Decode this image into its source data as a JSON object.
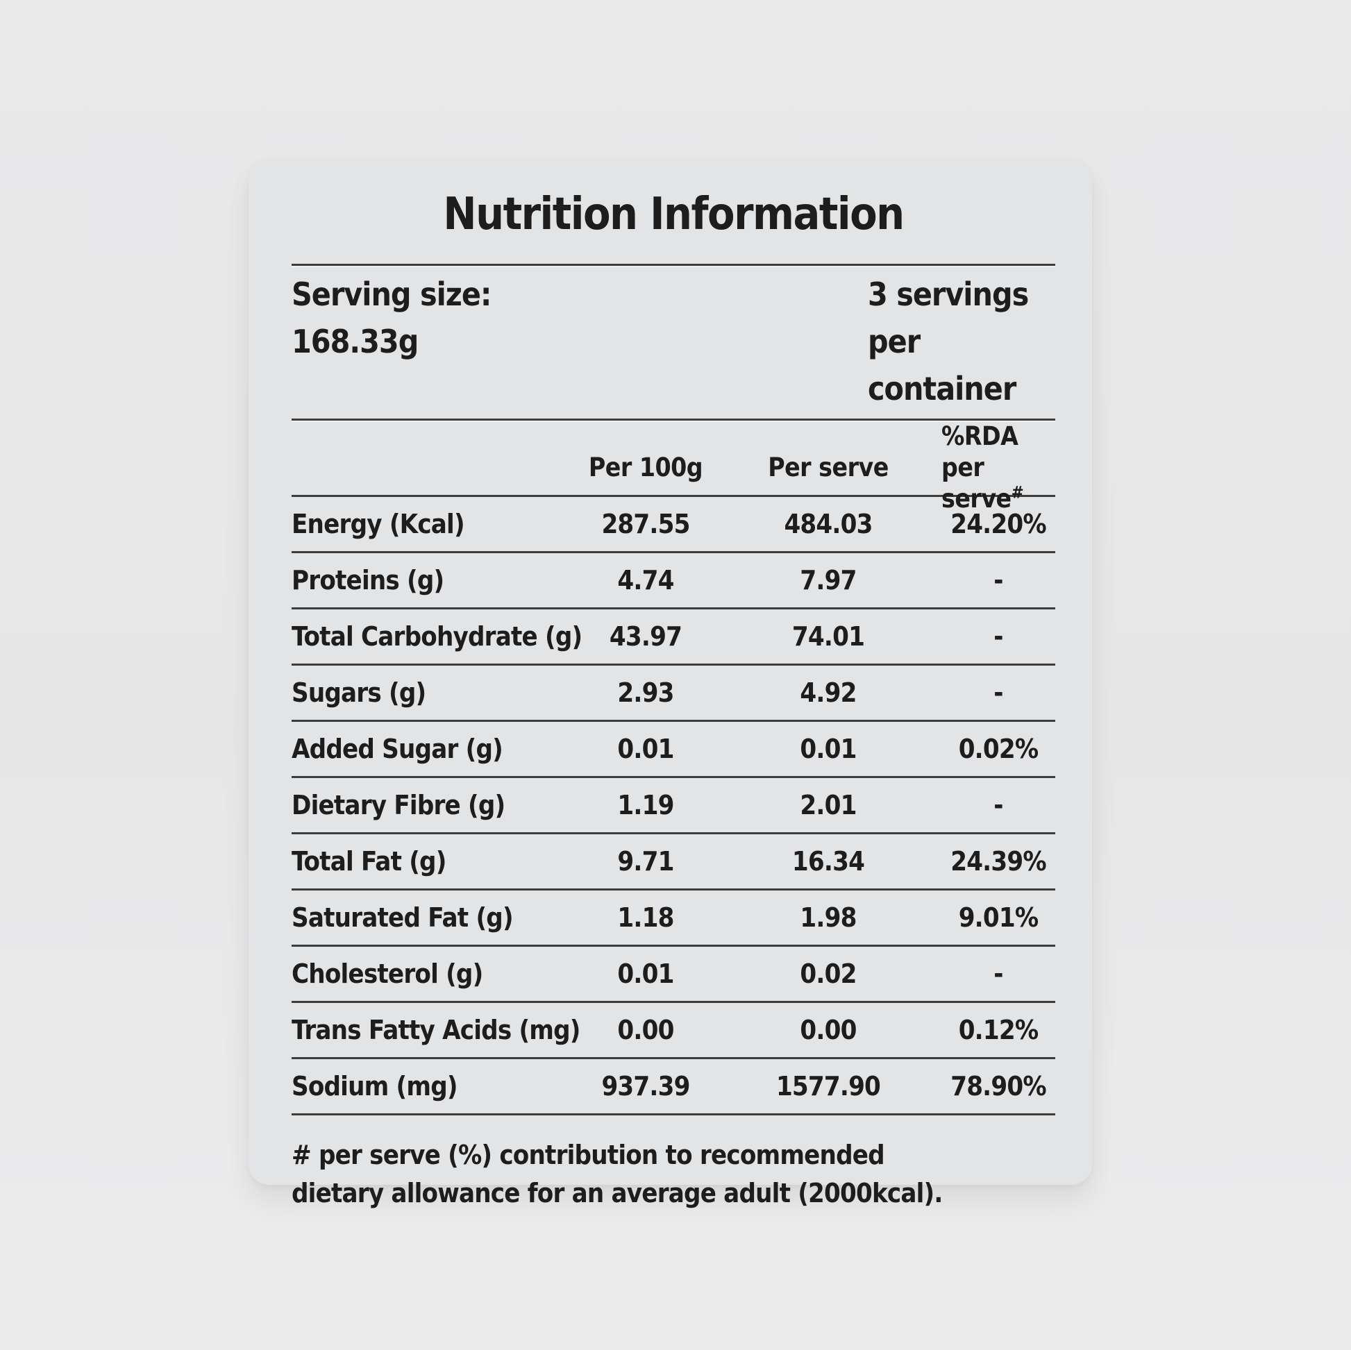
{
  "title": "Nutrition Information",
  "serving": {
    "size_label": "Serving size:",
    "size_value": "168.33g",
    "servings_count": "3 servings",
    "servings_unit": "per container"
  },
  "table": {
    "columns": {
      "per_100g": "Per 100g",
      "per_serve": "Per serve",
      "rda_line1": "%RDA",
      "rda_line2": "per serve",
      "rda_superscript": "#"
    },
    "rows": [
      {
        "label": "Energy (Kcal)",
        "per_100g": "287.55",
        "per_serve": "484.03",
        "rda_per_serve": "24.20%"
      },
      {
        "label": "Proteins (g)",
        "per_100g": "4.74",
        "per_serve": "7.97",
        "rda_per_serve": "-"
      },
      {
        "label": "Total Carbohydrate (g)",
        "per_100g": "43.97",
        "per_serve": "74.01",
        "rda_per_serve": "-"
      },
      {
        "label": "Sugars (g)",
        "per_100g": "2.93",
        "per_serve": "4.92",
        "rda_per_serve": "-"
      },
      {
        "label": "Added Sugar (g)",
        "per_100g": "0.01",
        "per_serve": "0.01",
        "rda_per_serve": "0.02%"
      },
      {
        "label": "Dietary Fibre (g)",
        "per_100g": "1.19",
        "per_serve": "2.01",
        "rda_per_serve": "-"
      },
      {
        "label": "Total Fat (g)",
        "per_100g": "9.71",
        "per_serve": "16.34",
        "rda_per_serve": "24.39%"
      },
      {
        "label": "Saturated Fat (g)",
        "per_100g": "1.18",
        "per_serve": "1.98",
        "rda_per_serve": "9.01%"
      },
      {
        "label": "Cholesterol (g)",
        "per_100g": "0.01",
        "per_serve": "0.02",
        "rda_per_serve": "-"
      },
      {
        "label": "Trans Fatty Acids (mg)",
        "per_100g": "0.00",
        "per_serve": "0.00",
        "rda_per_serve": "0.12%"
      },
      {
        "label": "Sodium (mg)",
        "per_100g": "937.39",
        "per_serve": "1577.90",
        "rda_per_serve": "78.90%"
      }
    ]
  },
  "footnote": {
    "line1": "# per serve (%) contribution to recommended",
    "line2": "dietary allowance for an average adult (2000kcal)."
  },
  "colors": {
    "page_bg": "#e8e8e9",
    "card_bg": "#e3e4e6",
    "rule": "#3c3c3c",
    "text": "#1d1d1d"
  }
}
